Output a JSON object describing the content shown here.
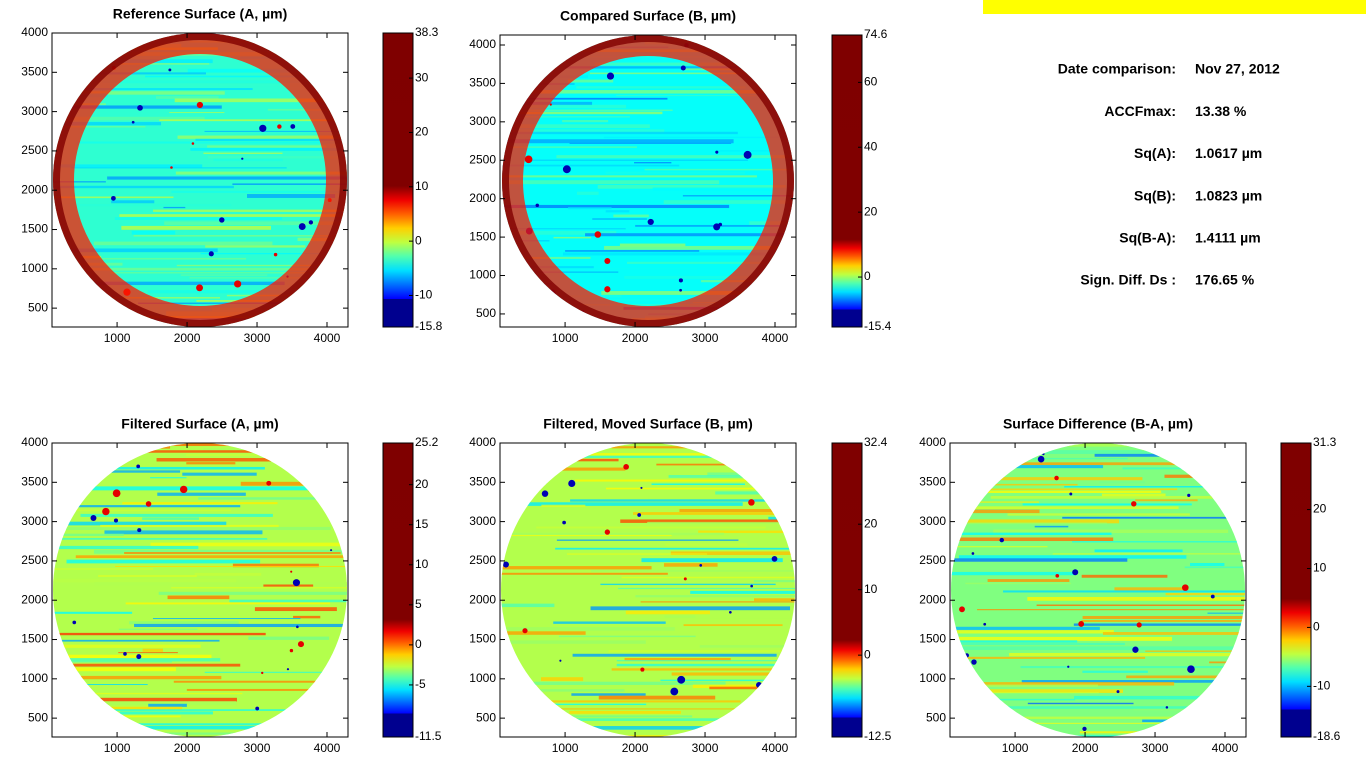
{
  "chart_data": [
    {
      "type": "heatmap",
      "title": "Reference Surface (A, µm)",
      "colormap": "jet",
      "xlim": [
        70,
        4300
      ],
      "xticks": [
        1000,
        2000,
        3000,
        4000
      ],
      "ylim": [
        260,
        4000
      ],
      "yticks": [
        500,
        1000,
        1500,
        2000,
        2500,
        3000,
        3500,
        4000
      ],
      "clim": [
        -15.8,
        38.3
      ],
      "cticks": [
        -10,
        0,
        10,
        20,
        30
      ]
    },
    {
      "type": "heatmap",
      "title": "Compared Surface (B, µm)",
      "colormap": "jet",
      "xlim": [
        70,
        4300
      ],
      "xticks": [
        1000,
        2000,
        3000,
        4000
      ],
      "ylim": [
        330,
        4130
      ],
      "yticks": [
        500,
        1000,
        1500,
        2000,
        2500,
        3000,
        3500,
        4000
      ],
      "clim": [
        -15.4,
        74.6
      ],
      "cticks": [
        0,
        20,
        40,
        60
      ]
    },
    {
      "type": "heatmap",
      "title": "Filtered Surface (A, µm)",
      "colormap": "jet",
      "xlim": [
        70,
        4300
      ],
      "xticks": [
        1000,
        2000,
        3000,
        4000
      ],
      "ylim": [
        260,
        4000
      ],
      "yticks": [
        500,
        1000,
        1500,
        2000,
        2500,
        3000,
        3500,
        4000
      ],
      "clim": [
        -11.5,
        25.2
      ],
      "cticks": [
        -5,
        0,
        5,
        10,
        15,
        20
      ]
    },
    {
      "type": "heatmap",
      "title": "Filtered, Moved Surface (B, µm)",
      "colormap": "jet",
      "xlim": [
        70,
        4300
      ],
      "xticks": [
        1000,
        2000,
        3000,
        4000
      ],
      "ylim": [
        260,
        4000
      ],
      "yticks": [
        500,
        1000,
        1500,
        2000,
        2500,
        3000,
        3500,
        4000
      ],
      "clim": [
        -12.5,
        32.4
      ],
      "cticks": [
        0,
        10,
        20
      ]
    },
    {
      "type": "heatmap",
      "title": "Surface Difference (B-A, µm)",
      "colormap": "jet",
      "xlim": [
        70,
        4300
      ],
      "xticks": [
        1000,
        2000,
        3000,
        4000
      ],
      "ylim": [
        260,
        4000
      ],
      "yticks": [
        500,
        1000,
        1500,
        2000,
        2500,
        3000,
        3500,
        4000
      ],
      "clim": [
        -18.6,
        31.3
      ],
      "cticks": [
        -10,
        0,
        10,
        20
      ]
    }
  ],
  "stats": {
    "rows": [
      {
        "label": "Date comparison:",
        "value": "Nov 27, 2012"
      },
      {
        "label": "ACCFmax:",
        "value": "13.38 %"
      },
      {
        "label": "Sq(A):",
        "value": "1.0617 µm"
      },
      {
        "label": "Sq(B):",
        "value": "1.0823 µm"
      },
      {
        "label": "Sq(B-A):",
        "value": "1.4111 µm"
      },
      {
        "label": "Sign. Diff. Ds :",
        "value": "176.65 %"
      }
    ]
  }
}
